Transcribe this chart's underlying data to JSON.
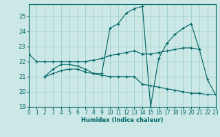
{
  "xlabel": "Humidex (Indice chaleur)",
  "bg_color": "#cce8e6",
  "grid_color": "#9ecfca",
  "line_color": "#006666",
  "xlim": [
    0,
    23
  ],
  "ylim": [
    19,
    25.8
  ],
  "yticks": [
    19,
    20,
    21,
    22,
    23,
    24,
    25
  ],
  "xticks": [
    0,
    1,
    2,
    3,
    4,
    5,
    6,
    7,
    8,
    9,
    10,
    11,
    12,
    13,
    14,
    15,
    16,
    17,
    18,
    19,
    20,
    21,
    22,
    23
  ],
  "series": [
    {
      "x": [
        0,
        1,
        2,
        3,
        4,
        5,
        6,
        7,
        8,
        9,
        10,
        11,
        12,
        13,
        14,
        15,
        16,
        17,
        18,
        19,
        20,
        21
      ],
      "y": [
        22.5,
        22.0,
        22.0,
        22.0,
        22.0,
        22.0,
        22.0,
        22.0,
        22.1,
        22.2,
        22.4,
        22.5,
        22.6,
        22.7,
        22.5,
        22.5,
        22.6,
        22.7,
        22.8,
        22.9,
        22.9,
        22.8
      ]
    },
    {
      "x": [
        2,
        3,
        4,
        5,
        6,
        7,
        8,
        9,
        10,
        11,
        12,
        13,
        14,
        15,
        16,
        17,
        18,
        19,
        20,
        21,
        22,
        23
      ],
      "y": [
        21.0,
        21.5,
        21.8,
        21.8,
        21.7,
        21.5,
        21.2,
        21.2,
        24.2,
        24.5,
        25.2,
        25.5,
        25.65,
        19.0,
        22.2,
        23.2,
        23.8,
        24.2,
        24.5,
        22.8,
        20.8,
        19.8
      ]
    },
    {
      "x": [
        2,
        3,
        4,
        5,
        6,
        7,
        8,
        9,
        10,
        11,
        12,
        13,
        14,
        15,
        16,
        17,
        18,
        19,
        20,
        21,
        22,
        23
      ],
      "y": [
        21.0,
        21.2,
        21.4,
        21.5,
        21.5,
        21.3,
        21.2,
        21.1,
        21.0,
        21.0,
        21.0,
        21.0,
        20.5,
        20.4,
        20.3,
        20.2,
        20.1,
        20.0,
        19.9,
        19.9,
        19.8,
        19.8
      ]
    }
  ]
}
